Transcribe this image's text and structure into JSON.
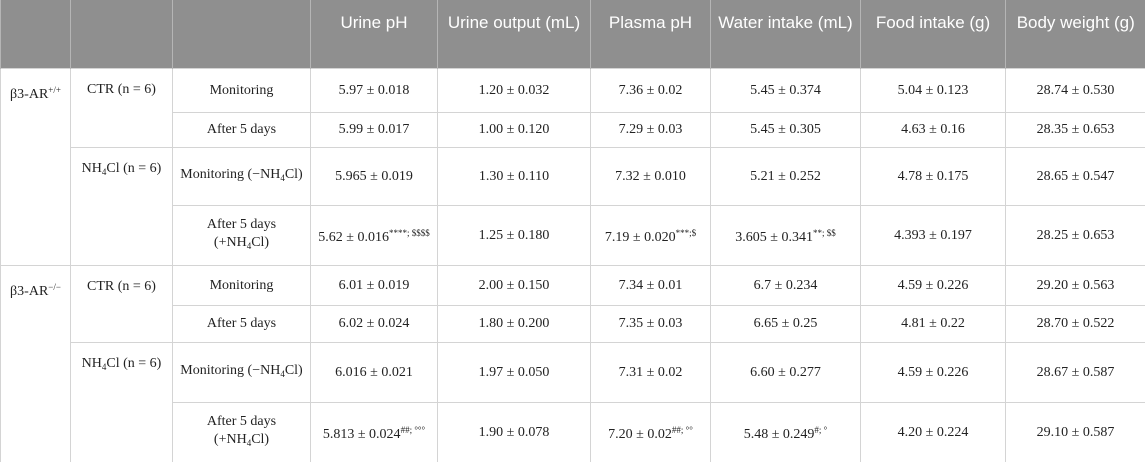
{
  "table": {
    "header": [
      "Urine pH",
      "Urine output (mL)",
      "Plasma pH",
      "Water intake (mL)",
      "Food intake (g)",
      "Body weight (g)"
    ],
    "groups": [
      {
        "label": [
          "β3-AR",
          {
            "sup": "+/+"
          }
        ],
        "subgroups": [
          {
            "label": [
              "CTR (n = 6)"
            ],
            "rows": [
              [
                [
                  "Monitoring"
                ],
                [
                  "5.97 ± 0.018"
                ],
                [
                  "1.20 ± 0.032"
                ],
                [
                  "7.36 ± 0.02"
                ],
                [
                  "5.45 ± 0.374"
                ],
                [
                  "5.04 ± 0.123"
                ],
                [
                  "28.74 ± 0.530"
                ]
              ],
              [
                [
                  "After 5 days"
                ],
                [
                  "5.99 ± 0.017"
                ],
                [
                  "1.00 ± 0.120"
                ],
                [
                  "7.29 ± 0.03"
                ],
                [
                  "5.45 ± 0.305"
                ],
                [
                  "4.63 ± 0.16"
                ],
                [
                  "28.35 ± 0.653"
                ]
              ]
            ]
          },
          {
            "label": [
              "NH",
              {
                "sub": "4"
              },
              "Cl (n = 6)"
            ],
            "rows": [
              [
                [
                  "Monitoring (−NH",
                  {
                    "sub": "4"
                  },
                  "Cl)"
                ],
                [
                  "5.965 ± 0.019"
                ],
                [
                  "1.30 ± 0.110"
                ],
                [
                  "7.32 ± 0.010"
                ],
                [
                  "5.21 ± 0.252"
                ],
                [
                  "4.78 ± 0.175"
                ],
                [
                  "28.65 ± 0.547"
                ]
              ],
              [
                [
                  "After 5 days (+NH",
                  {
                    "sub": "4"
                  },
                  "Cl)"
                ],
                [
                  "5.62 ± 0.016",
                  {
                    "sup": "****; $$$$"
                  }
                ],
                [
                  "1.25 ± 0.180"
                ],
                [
                  "7.19 ± 0.020",
                  {
                    "sup": "***;$"
                  }
                ],
                [
                  "3.605 ± 0.341",
                  {
                    "sup": "**; $$"
                  }
                ],
                [
                  "4.393 ± 0.197"
                ],
                [
                  "28.25 ± 0.653"
                ]
              ]
            ]
          }
        ]
      },
      {
        "label": [
          "β3-AR",
          {
            "sup": "−/−"
          }
        ],
        "subgroups": [
          {
            "label": [
              "CTR (n = 6)"
            ],
            "rows": [
              [
                [
                  "Monitoring"
                ],
                [
                  "6.01 ± 0.019"
                ],
                [
                  "2.00 ± 0.150"
                ],
                [
                  "7.34 ± 0.01"
                ],
                [
                  "6.7 ± 0.234"
                ],
                [
                  "4.59 ± 0.226"
                ],
                [
                  "29.20 ± 0.563"
                ]
              ],
              [
                [
                  "After 5 days"
                ],
                [
                  "6.02 ± 0.024"
                ],
                [
                  "1.80 ± 0.200"
                ],
                [
                  "7.35 ± 0.03"
                ],
                [
                  "6.65 ± 0.25"
                ],
                [
                  "4.81 ± 0.22"
                ],
                [
                  "28.70 ± 0.522"
                ]
              ]
            ]
          },
          {
            "label": [
              "NH",
              {
                "sub": "4"
              },
              "Cl (n = 6)"
            ],
            "rows": [
              [
                [
                  "Monitoring (−NH",
                  {
                    "sub": "4"
                  },
                  "Cl)"
                ],
                [
                  "6.016 ± 0.021"
                ],
                [
                  "1.97 ± 0.050"
                ],
                [
                  "7.31 ± 0.02"
                ],
                [
                  "6.60 ± 0.277"
                ],
                [
                  "4.59 ± 0.226"
                ],
                [
                  "28.67 ± 0.587"
                ]
              ],
              [
                [
                  "After 5 days (+NH",
                  {
                    "sub": "4"
                  },
                  "Cl)"
                ],
                [
                  "5.813 ± 0.024",
                  {
                    "sup": "##; °°°"
                  }
                ],
                [
                  "1.90 ± 0.078"
                ],
                [
                  "7.20 ± 0.02",
                  {
                    "sup": "##; °°"
                  }
                ],
                [
                  "5.48 ± 0.249",
                  {
                    "sup": "#; °"
                  }
                ],
                [
                  "4.20 ± 0.224"
                ],
                [
                  "29.10 ± 0.587"
                ]
              ]
            ]
          }
        ]
      }
    ]
  }
}
